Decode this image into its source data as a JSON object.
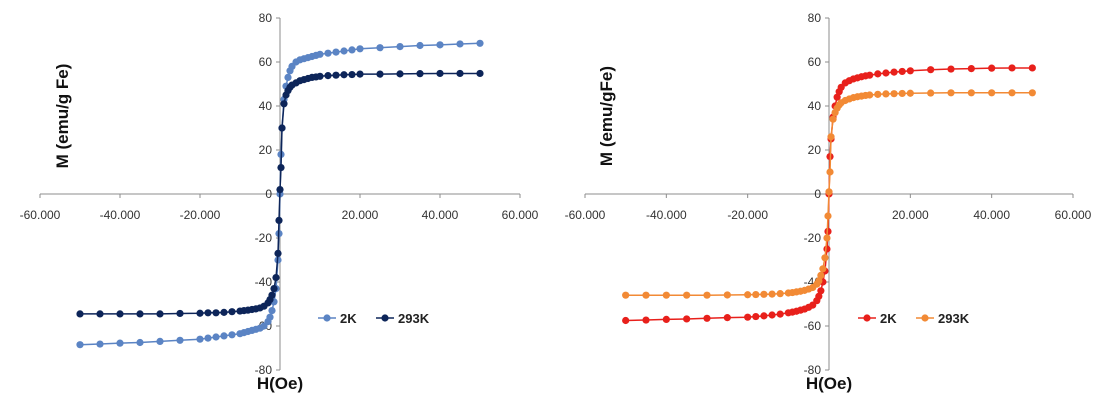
{
  "chart_data": [
    {
      "type": "scatter",
      "xlabel": "H(Oe)",
      "ylabel": "M (emu/g Fe)",
      "xlim": [
        -60000,
        60000
      ],
      "ylim": [
        -80,
        80
      ],
      "xticks": [
        -60000,
        -40000,
        -20000,
        0,
        20000,
        40000,
        60000
      ],
      "xtick_labels": [
        "-60.000",
        "-40.000",
        "-20.000",
        "0",
        "20.000",
        "40.000",
        "60.000"
      ],
      "yticks": [
        -80,
        -60,
        -40,
        -20,
        0,
        20,
        40,
        60,
        80
      ],
      "ytick_labels": [
        "-80",
        "-60",
        "-40",
        "-20",
        "0",
        "20",
        "40",
        "60",
        "80"
      ],
      "legend_position": "right-center",
      "series": [
        {
          "name": "2K",
          "color": "#5b84c4",
          "x": [
            -50000,
            -45000,
            -40000,
            -35000,
            -30000,
            -25000,
            -20000,
            -18000,
            -16000,
            -14000,
            -12000,
            -10000,
            -9000,
            -8000,
            -7000,
            -6000,
            -5000,
            -4000,
            -3000,
            -2500,
            -2000,
            -1500,
            -1000,
            -500,
            -250,
            0,
            250,
            500,
            1000,
            1500,
            2000,
            2500,
            3000,
            4000,
            5000,
            6000,
            7000,
            8000,
            9000,
            10000,
            12000,
            14000,
            16000,
            18000,
            20000,
            25000,
            30000,
            35000,
            40000,
            45000,
            50000
          ],
          "y": [
            -68.5,
            -68.2,
            -67.8,
            -67.5,
            -67,
            -66.5,
            -66,
            -65.5,
            -65,
            -64.5,
            -64,
            -63.5,
            -63,
            -62.5,
            -62,
            -61.5,
            -61,
            -60,
            -58,
            -56,
            -53,
            -49,
            -43,
            -30,
            -18,
            0,
            18,
            30,
            43,
            49,
            53,
            56,
            58,
            60,
            61,
            61.5,
            62,
            62.5,
            63,
            63.5,
            64,
            64.5,
            65,
            65.5,
            66,
            66.5,
            67,
            67.5,
            67.8,
            68.2,
            68.5
          ]
        },
        {
          "name": "293K",
          "color": "#0d2559",
          "x": [
            -50000,
            -45000,
            -40000,
            -35000,
            -30000,
            -25000,
            -20000,
            -18000,
            -16000,
            -14000,
            -12000,
            -10000,
            -9000,
            -8000,
            -7000,
            -6000,
            -5000,
            -4000,
            -3000,
            -2500,
            -2000,
            -1500,
            -1000,
            -500,
            -250,
            0,
            250,
            500,
            1000,
            1500,
            2000,
            2500,
            3000,
            4000,
            5000,
            6000,
            7000,
            8000,
            9000,
            10000,
            12000,
            14000,
            16000,
            18000,
            20000,
            25000,
            30000,
            35000,
            40000,
            45000,
            50000
          ],
          "y": [
            -54.5,
            -54.5,
            -54.5,
            -54.5,
            -54.5,
            -54.3,
            -54.2,
            -54,
            -54,
            -53.8,
            -53.5,
            -53.2,
            -53,
            -52.8,
            -52.5,
            -52.2,
            -51.8,
            -51,
            -49.5,
            -48,
            -46,
            -43,
            -38,
            -27,
            -12,
            2,
            12,
            30,
            41,
            45,
            47,
            48.5,
            49.5,
            50.5,
            51.5,
            52,
            52.5,
            53,
            53.2,
            53.5,
            53.8,
            54,
            54.2,
            54.3,
            54.5,
            54.5,
            54.6,
            54.7,
            54.8,
            54.8,
            54.8
          ]
        }
      ]
    },
    {
      "type": "scatter",
      "xlabel": "H(Oe)",
      "ylabel": "M (emu/gFe)",
      "xlim": [
        -60000,
        60000
      ],
      "ylim": [
        -80,
        80
      ],
      "xticks": [
        -60000,
        -40000,
        -20000,
        0,
        20000,
        40000,
        60000
      ],
      "xtick_labels": [
        "-60.000",
        "-40.000",
        "-20.000",
        "0",
        "20.000",
        "40.000",
        "60.000"
      ],
      "yticks": [
        -80,
        -60,
        -40,
        -20,
        0,
        20,
        40,
        60,
        80
      ],
      "ytick_labels": [
        "-80",
        "-60",
        "-40",
        "-20",
        "0",
        "20",
        "40",
        "60",
        "80"
      ],
      "legend_position": "right-center",
      "series": [
        {
          "name": "2K",
          "color": "#e8201b",
          "x": [
            -50000,
            -45000,
            -40000,
            -35000,
            -30000,
            -25000,
            -20000,
            -18000,
            -16000,
            -14000,
            -12000,
            -10000,
            -9000,
            -8000,
            -7000,
            -6000,
            -5000,
            -4000,
            -3000,
            -2500,
            -2000,
            -1500,
            -1000,
            -500,
            -250,
            0,
            250,
            500,
            1000,
            1500,
            2000,
            2500,
            3000,
            4000,
            5000,
            6000,
            7000,
            8000,
            9000,
            10000,
            12000,
            14000,
            16000,
            18000,
            20000,
            25000,
            30000,
            35000,
            40000,
            45000,
            50000
          ],
          "y": [
            -57.5,
            -57.3,
            -57,
            -56.8,
            -56.5,
            -56.2,
            -56,
            -55.7,
            -55.4,
            -55,
            -54.6,
            -54,
            -53.7,
            -53.3,
            -52.8,
            -52.3,
            -51.5,
            -50.5,
            -48.5,
            -46.5,
            -44,
            -40,
            -35,
            -25,
            -17,
            0,
            17,
            25,
            35,
            40,
            44,
            46.5,
            48.5,
            50.5,
            51.5,
            52.3,
            52.8,
            53.3,
            53.7,
            54,
            54.6,
            55,
            55.4,
            55.7,
            56,
            56.5,
            56.8,
            57,
            57.2,
            57.3,
            57.3
          ]
        },
        {
          "name": "293K",
          "color": "#f28a35",
          "x": [
            -50000,
            -45000,
            -40000,
            -35000,
            -30000,
            -25000,
            -20000,
            -18000,
            -16000,
            -14000,
            -12000,
            -10000,
            -9000,
            -8000,
            -7000,
            -6000,
            -5000,
            -4000,
            -3000,
            -2500,
            -2000,
            -1500,
            -1000,
            -500,
            -250,
            0,
            250,
            500,
            1000,
            1500,
            2000,
            2500,
            3000,
            4000,
            5000,
            6000,
            7000,
            8000,
            9000,
            10000,
            12000,
            14000,
            16000,
            18000,
            20000,
            25000,
            30000,
            35000,
            40000,
            45000,
            50000
          ],
          "y": [
            -46,
            -46,
            -46,
            -46,
            -46,
            -45.9,
            -45.8,
            -45.7,
            -45.6,
            -45.5,
            -45.3,
            -45,
            -44.8,
            -44.5,
            -44.2,
            -43.8,
            -43.2,
            -42.5,
            -41,
            -39.5,
            -37,
            -34,
            -29,
            -20,
            -10,
            1,
            10,
            26,
            34,
            37,
            39,
            40.5,
            41.5,
            42.5,
            43.2,
            43.8,
            44.2,
            44.5,
            44.8,
            45,
            45.3,
            45.5,
            45.6,
            45.7,
            45.8,
            45.9,
            46,
            46,
            46,
            46,
            46
          ]
        }
      ]
    }
  ]
}
